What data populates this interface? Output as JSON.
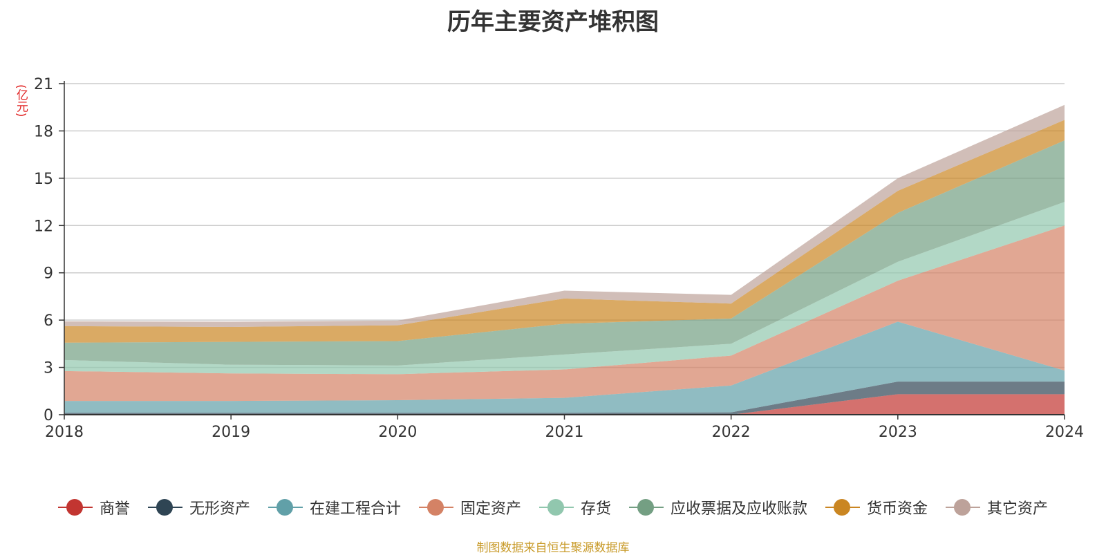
{
  "chart_data": {
    "type": "area",
    "title": "历年主要资产堆积图",
    "ylabel": "(亿元)",
    "xlabel": "",
    "stacked": true,
    "x": [
      "2018",
      "2019",
      "2020",
      "2021",
      "2022",
      "2023",
      "2024"
    ],
    "ylim": [
      0,
      21
    ],
    "yticks": [
      "0",
      "3",
      "6",
      "9",
      "12",
      "15",
      "18",
      "21"
    ],
    "grid": true,
    "legend_position": "bottom",
    "series": [
      {
        "name": "商誉",
        "color": "#c23531",
        "values": [
          0,
          0,
          0,
          0,
          0,
          1.3,
          1.3
        ]
      },
      {
        "name": "无形资产",
        "color": "#2f4554",
        "values": [
          0.12,
          0.12,
          0.12,
          0.12,
          0.15,
          0.8,
          0.8
        ]
      },
      {
        "name": "在建工程合计",
        "color": "#61a0a8",
        "values": [
          0.75,
          0.75,
          0.8,
          0.95,
          1.7,
          3.8,
          0.7
        ]
      },
      {
        "name": "固定资产",
        "color": "#d48265",
        "values": [
          1.9,
          1.75,
          1.65,
          1.8,
          1.9,
          2.6,
          9.2
        ]
      },
      {
        "name": "存货",
        "color": "#91c7ae",
        "values": [
          0.7,
          0.55,
          0.55,
          0.95,
          0.75,
          1.2,
          1.5
        ]
      },
      {
        "name": "应收票据及应收账款",
        "color": "#749f83",
        "values": [
          1.1,
          1.45,
          1.55,
          1.95,
          1.6,
          3.1,
          3.9
        ]
      },
      {
        "name": "货币资金",
        "color": "#ca8622",
        "values": [
          1.05,
          0.95,
          1.0,
          1.6,
          0.95,
          1.4,
          1.3
        ]
      },
      {
        "name": "其它资产",
        "color": "#bda29a",
        "values": [
          0.3,
          0.33,
          0.3,
          0.5,
          0.55,
          0.8,
          0.95
        ]
      }
    ]
  },
  "footer": {
    "source": "制图数据来自恒生聚源数据库"
  }
}
